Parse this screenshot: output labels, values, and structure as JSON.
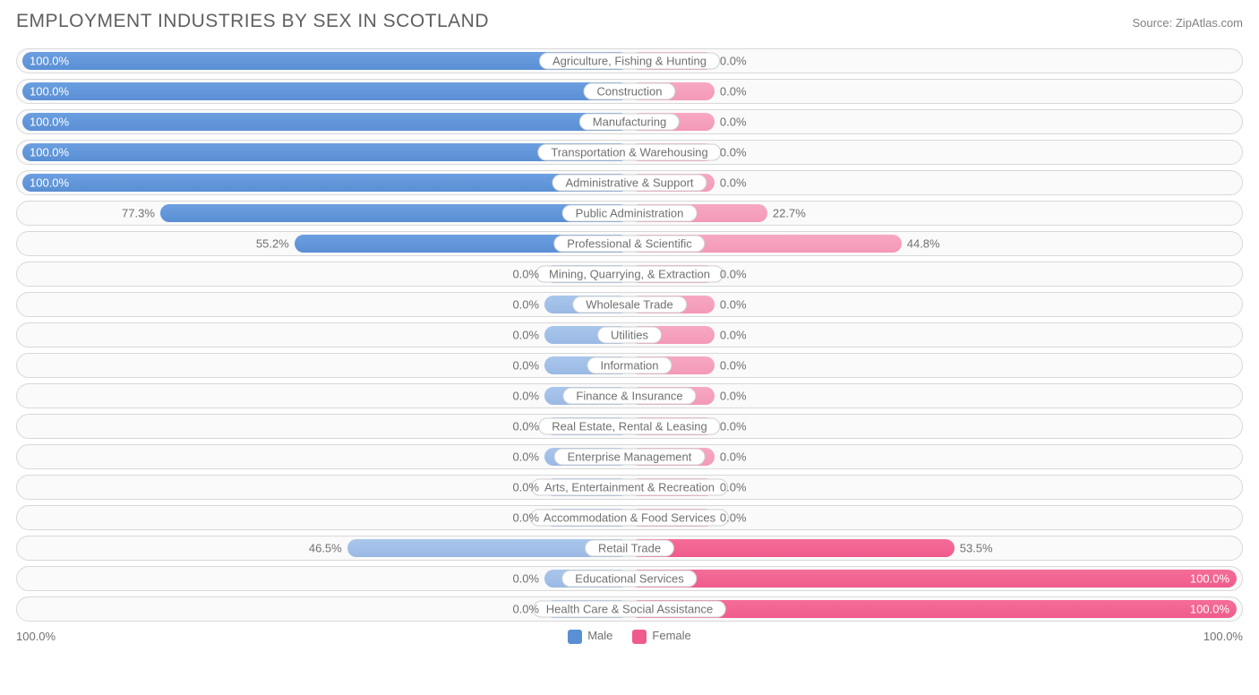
{
  "title": "EMPLOYMENT INDUSTRIES BY SEX IN SCOTLAND",
  "source": "Source: ZipAtlas.com",
  "axis": {
    "left_label": "100.0%",
    "right_label": "100.0%",
    "max_pct": 100
  },
  "legend": {
    "male": {
      "label": "Male",
      "color": "#5b8fd4"
    },
    "female": {
      "label": "Female",
      "color": "#ef5c8c"
    }
  },
  "colors": {
    "row_border": "#d8d8d8",
    "row_bg": "#fafafa",
    "text": "#707070",
    "background": "#ffffff",
    "male_dark": "#5b8fd4",
    "male_light": "#9ab9e4",
    "female_dark": "#ef5c8c",
    "female_light": "#f399b7",
    "min_bar_pct": 14
  },
  "rows": [
    {
      "label": "Agriculture, Fishing & Hunting",
      "male": 100.0,
      "female": 0.0
    },
    {
      "label": "Construction",
      "male": 100.0,
      "female": 0.0
    },
    {
      "label": "Manufacturing",
      "male": 100.0,
      "female": 0.0
    },
    {
      "label": "Transportation & Warehousing",
      "male": 100.0,
      "female": 0.0
    },
    {
      "label": "Administrative & Support",
      "male": 100.0,
      "female": 0.0
    },
    {
      "label": "Public Administration",
      "male": 77.3,
      "female": 22.7
    },
    {
      "label": "Professional & Scientific",
      "male": 55.2,
      "female": 44.8
    },
    {
      "label": "Mining, Quarrying, & Extraction",
      "male": 0.0,
      "female": 0.0
    },
    {
      "label": "Wholesale Trade",
      "male": 0.0,
      "female": 0.0
    },
    {
      "label": "Utilities",
      "male": 0.0,
      "female": 0.0
    },
    {
      "label": "Information",
      "male": 0.0,
      "female": 0.0
    },
    {
      "label": "Finance & Insurance",
      "male": 0.0,
      "female": 0.0
    },
    {
      "label": "Real Estate, Rental & Leasing",
      "male": 0.0,
      "female": 0.0
    },
    {
      "label": "Enterprise Management",
      "male": 0.0,
      "female": 0.0
    },
    {
      "label": "Arts, Entertainment & Recreation",
      "male": 0.0,
      "female": 0.0
    },
    {
      "label": "Accommodation & Food Services",
      "male": 0.0,
      "female": 0.0
    },
    {
      "label": "Retail Trade",
      "male": 46.5,
      "female": 53.5
    },
    {
      "label": "Educational Services",
      "male": 0.0,
      "female": 100.0
    },
    {
      "label": "Health Care & Social Assistance",
      "male": 0.0,
      "female": 100.0
    }
  ],
  "typography": {
    "title_fontsize": 21,
    "label_fontsize": 13,
    "pct_fontsize": 13
  }
}
